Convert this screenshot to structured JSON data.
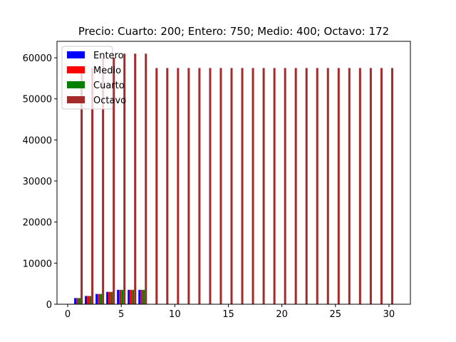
{
  "chart_data": {
    "type": "bar",
    "title": "Precio: Cuarto: 200; Entero: 750; Medio: 400; Octavo: 172",
    "xlabel": "",
    "ylabel": "",
    "xlim": [
      -1,
      32
    ],
    "ylim": [
      0,
      64000
    ],
    "xticks": [
      0,
      5,
      10,
      15,
      20,
      25,
      30
    ],
    "yticks": [
      0,
      10000,
      20000,
      30000,
      40000,
      50000,
      60000
    ],
    "bar_width": 0.2,
    "grid": false,
    "legend_position": "top-left",
    "series": [
      {
        "name": "Entero",
        "color": "#0000ff",
        "offset": -0.3,
        "x": [
          1,
          2,
          3,
          4,
          5,
          6,
          7
        ],
        "values": [
          1500,
          2000,
          2500,
          3000,
          3500,
          3500,
          3500
        ]
      },
      {
        "name": "Medio",
        "color": "#ff0000",
        "offset": -0.1,
        "x": [
          1,
          2,
          3,
          4,
          5,
          6,
          7
        ],
        "values": [
          1500,
          2000,
          2500,
          3000,
          3500,
          3500,
          3500
        ]
      },
      {
        "name": "Cuarto",
        "color": "#008000",
        "offset": 0.1,
        "x": [
          1,
          2,
          3,
          4,
          5,
          6,
          7
        ],
        "values": [
          1500,
          2000,
          2500,
          3000,
          3500,
          3500,
          3500
        ]
      },
      {
        "name": "Octavo",
        "color": "#a52a2a",
        "offset": 0.3,
        "x": [
          1,
          2,
          3,
          4,
          5,
          6,
          7,
          8,
          9,
          10,
          11,
          12,
          13,
          14,
          15,
          16,
          17,
          18,
          19,
          20,
          21,
          22,
          23,
          24,
          25,
          26,
          27,
          28,
          29,
          30
        ],
        "values": [
          57500,
          57500,
          60000,
          60000,
          61000,
          61000,
          61000,
          57500,
          57500,
          57500,
          57500,
          57500,
          57500,
          57500,
          57500,
          57500,
          57500,
          57500,
          57500,
          57500,
          57500,
          57500,
          57500,
          57500,
          57500,
          57500,
          57500,
          57500,
          57500,
          57500
        ]
      }
    ]
  }
}
